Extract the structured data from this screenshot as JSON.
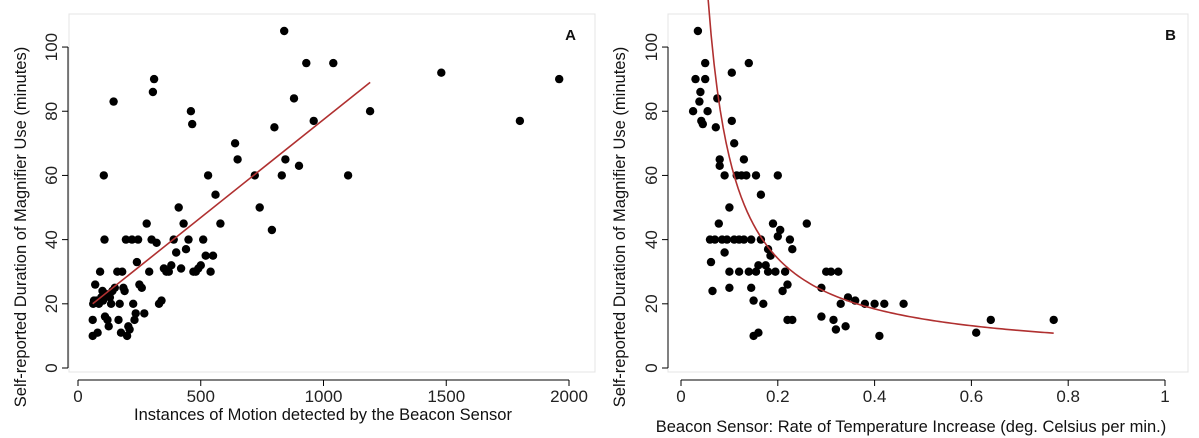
{
  "chart_data": [
    {
      "type": "scatter",
      "panel_label": "A",
      "xlabel": "Instances of Motion detected by the Beacon Sensor",
      "ylabel": "Self-reported Duration of Magnifier Use (minutes)",
      "xlim": [
        0,
        2000
      ],
      "ylim": [
        0,
        105
      ],
      "xticks": [
        0,
        500,
        1000,
        1500,
        2000
      ],
      "yticks": [
        0,
        20,
        40,
        60,
        80,
        100
      ],
      "grid": false,
      "marker_color": "#000000",
      "fit_color": "#b03030",
      "fit": {
        "model": "linear",
        "x_range": [
          60,
          1190
        ],
        "y_at_start": 20,
        "y_at_end": 89
      },
      "points": [
        [
          60,
          10
        ],
        [
          60,
          15
        ],
        [
          62,
          20
        ],
        [
          65,
          21
        ],
        [
          70,
          26
        ],
        [
          75,
          21
        ],
        [
          80,
          11
        ],
        [
          85,
          20
        ],
        [
          90,
          30
        ],
        [
          95,
          22
        ],
        [
          100,
          24
        ],
        [
          102,
          21
        ],
        [
          105,
          60
        ],
        [
          108,
          40
        ],
        [
          110,
          16
        ],
        [
          115,
          23
        ],
        [
          120,
          15
        ],
        [
          125,
          13
        ],
        [
          130,
          22
        ],
        [
          135,
          20
        ],
        [
          140,
          24
        ],
        [
          145,
          83
        ],
        [
          150,
          25
        ],
        [
          160,
          30
        ],
        [
          165,
          15
        ],
        [
          170,
          20
        ],
        [
          175,
          11
        ],
        [
          180,
          30
        ],
        [
          185,
          25
        ],
        [
          190,
          24
        ],
        [
          195,
          40
        ],
        [
          200,
          10
        ],
        [
          205,
          13
        ],
        [
          210,
          12
        ],
        [
          220,
          40
        ],
        [
          225,
          20
        ],
        [
          230,
          15
        ],
        [
          235,
          17
        ],
        [
          240,
          33
        ],
        [
          245,
          40
        ],
        [
          250,
          26
        ],
        [
          260,
          25
        ],
        [
          270,
          17
        ],
        [
          280,
          45
        ],
        [
          290,
          30
        ],
        [
          300,
          40
        ],
        [
          305,
          86
        ],
        [
          310,
          90
        ],
        [
          320,
          39
        ],
        [
          330,
          20
        ],
        [
          340,
          21
        ],
        [
          350,
          31
        ],
        [
          360,
          30
        ],
        [
          370,
          30
        ],
        [
          380,
          32
        ],
        [
          390,
          40
        ],
        [
          400,
          36
        ],
        [
          410,
          50
        ],
        [
          420,
          31
        ],
        [
          430,
          45
        ],
        [
          440,
          37
        ],
        [
          450,
          40
        ],
        [
          460,
          80
        ],
        [
          465,
          76
        ],
        [
          470,
          30
        ],
        [
          480,
          30
        ],
        [
          490,
          31
        ],
        [
          500,
          32
        ],
        [
          510,
          40
        ],
        [
          520,
          35
        ],
        [
          530,
          60
        ],
        [
          540,
          30
        ],
        [
          550,
          35
        ],
        [
          560,
          54
        ],
        [
          580,
          45
        ],
        [
          640,
          70
        ],
        [
          650,
          65
        ],
        [
          720,
          60
        ],
        [
          740,
          50
        ],
        [
          790,
          43
        ],
        [
          800,
          75
        ],
        [
          830,
          60
        ],
        [
          840,
          105
        ],
        [
          845,
          65
        ],
        [
          880,
          84
        ],
        [
          900,
          63
        ],
        [
          930,
          95
        ],
        [
          960,
          77
        ],
        [
          1040,
          95
        ],
        [
          1100,
          60
        ],
        [
          1190,
          80
        ],
        [
          1480,
          92
        ],
        [
          1800,
          77
        ],
        [
          1960,
          90
        ]
      ]
    },
    {
      "type": "scatter",
      "panel_label": "B",
      "xlabel": "Beacon Sensor: Rate of Temperature Increase (deg. Celsius per min.)",
      "ylabel": "Self-reported Duration of Magnifier Use (minutes)",
      "xlim": [
        0,
        1
      ],
      "ylim": [
        0,
        105
      ],
      "xticks": [
        0,
        0.2,
        0.4,
        0.6,
        0.8,
        1
      ],
      "yticks": [
        0,
        20,
        40,
        60,
        80,
        100
      ],
      "grid": false,
      "marker_color": "#000000",
      "fit_color": "#b03030",
      "fit": {
        "model": "y = a + b / x",
        "a": 2.69,
        "b": 6.29,
        "x_range": [
          0.025,
          0.77
        ]
      },
      "points": [
        [
          0.025,
          80
        ],
        [
          0.03,
          90
        ],
        [
          0.035,
          105
        ],
        [
          0.038,
          83
        ],
        [
          0.04,
          86
        ],
        [
          0.042,
          77
        ],
        [
          0.045,
          76
        ],
        [
          0.05,
          90
        ],
        [
          0.05,
          95
        ],
        [
          0.055,
          80
        ],
        [
          0.06,
          40
        ],
        [
          0.062,
          33
        ],
        [
          0.065,
          24
        ],
        [
          0.07,
          40
        ],
        [
          0.072,
          75
        ],
        [
          0.075,
          84
        ],
        [
          0.078,
          45
        ],
        [
          0.08,
          65
        ],
        [
          0.08,
          63
        ],
        [
          0.085,
          40
        ],
        [
          0.09,
          60
        ],
        [
          0.09,
          36
        ],
        [
          0.095,
          40
        ],
        [
          0.1,
          30
        ],
        [
          0.1,
          25
        ],
        [
          0.1,
          50
        ],
        [
          0.105,
          77
        ],
        [
          0.105,
          92
        ],
        [
          0.11,
          70
        ],
        [
          0.11,
          40
        ],
        [
          0.115,
          60
        ],
        [
          0.12,
          30
        ],
        [
          0.12,
          40
        ],
        [
          0.125,
          60
        ],
        [
          0.13,
          65
        ],
        [
          0.13,
          40
        ],
        [
          0.135,
          60
        ],
        [
          0.14,
          95
        ],
        [
          0.14,
          30
        ],
        [
          0.145,
          40
        ],
        [
          0.145,
          25
        ],
        [
          0.15,
          21
        ],
        [
          0.15,
          10
        ],
        [
          0.155,
          30
        ],
        [
          0.155,
          60
        ],
        [
          0.16,
          32
        ],
        [
          0.16,
          11
        ],
        [
          0.165,
          40
        ],
        [
          0.165,
          54
        ],
        [
          0.17,
          20
        ],
        [
          0.175,
          32
        ],
        [
          0.18,
          30
        ],
        [
          0.18,
          37
        ],
        [
          0.185,
          35
        ],
        [
          0.19,
          45
        ],
        [
          0.195,
          30
        ],
        [
          0.2,
          60
        ],
        [
          0.2,
          41
        ],
        [
          0.205,
          43
        ],
        [
          0.21,
          24
        ],
        [
          0.215,
          30
        ],
        [
          0.22,
          26
        ],
        [
          0.22,
          15
        ],
        [
          0.225,
          40
        ],
        [
          0.23,
          37
        ],
        [
          0.23,
          15
        ],
        [
          0.26,
          45
        ],
        [
          0.29,
          25
        ],
        [
          0.29,
          16
        ],
        [
          0.3,
          30
        ],
        [
          0.31,
          30
        ],
        [
          0.315,
          15
        ],
        [
          0.32,
          12
        ],
        [
          0.325,
          30
        ],
        [
          0.33,
          20
        ],
        [
          0.34,
          13
        ],
        [
          0.345,
          22
        ],
        [
          0.36,
          21
        ],
        [
          0.38,
          20
        ],
        [
          0.4,
          20
        ],
        [
          0.41,
          10
        ],
        [
          0.42,
          20
        ],
        [
          0.46,
          20
        ],
        [
          0.61,
          11
        ],
        [
          0.64,
          15
        ],
        [
          0.77,
          15
        ]
      ]
    }
  ]
}
